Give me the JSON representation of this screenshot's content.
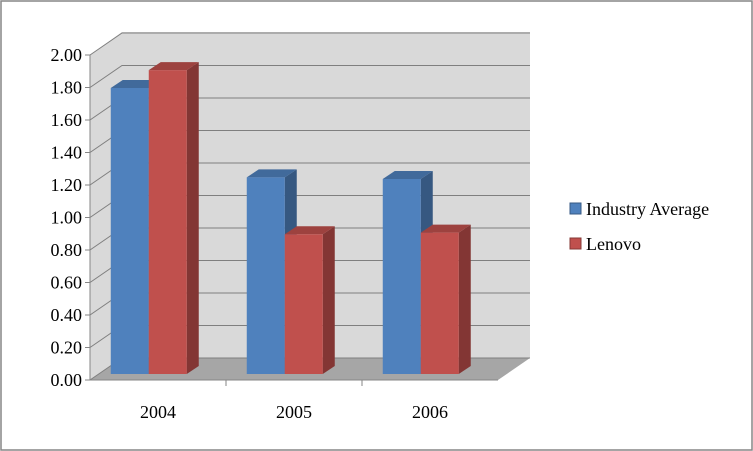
{
  "chart_data": {
    "type": "bar",
    "style": "3d-clustered-column",
    "categories": [
      "2004",
      "2005",
      "2006"
    ],
    "series": [
      {
        "name": "Industry Average",
        "values": [
          1.76,
          1.21,
          1.2
        ],
        "color": "#4f81bd"
      },
      {
        "name": "Lenovo",
        "values": [
          1.87,
          0.86,
          0.87
        ],
        "color": "#c0504d"
      }
    ],
    "y_ticks": [
      "0.00",
      "0.20",
      "0.40",
      "0.60",
      "0.80",
      "1.00",
      "1.20",
      "1.40",
      "1.60",
      "1.80",
      "2.00"
    ],
    "ylim": [
      0,
      2
    ],
    "grid": true,
    "legend": "right",
    "title": "",
    "xlabel": "",
    "ylabel": ""
  }
}
